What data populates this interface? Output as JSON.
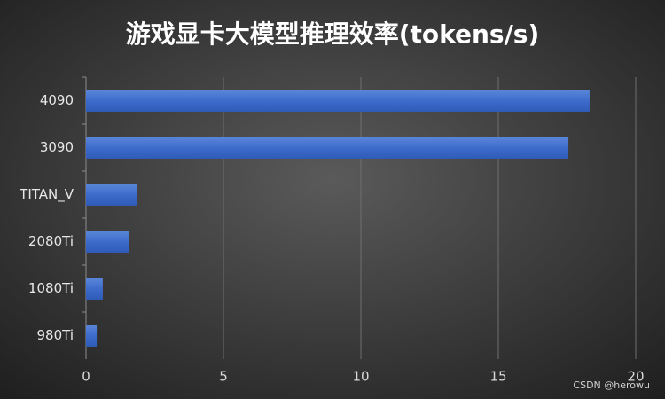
{
  "chart_data": {
    "type": "bar",
    "orientation": "horizontal",
    "title": "游戏显卡大模型推理效率(tokens/s)",
    "categories": [
      "4090",
      "3090",
      "TITAN_V",
      "2080Ti",
      "1080Ti",
      "980Ti"
    ],
    "values": [
      18.32,
      17.55,
      1.84,
      1.55,
      0.61,
      0.39
    ],
    "color": "#4472c4",
    "xlim": [
      0,
      20
    ],
    "xticks": [
      0,
      5,
      10,
      15,
      20
    ],
    "grid": true,
    "watermark": "CSDN @herowu"
  }
}
